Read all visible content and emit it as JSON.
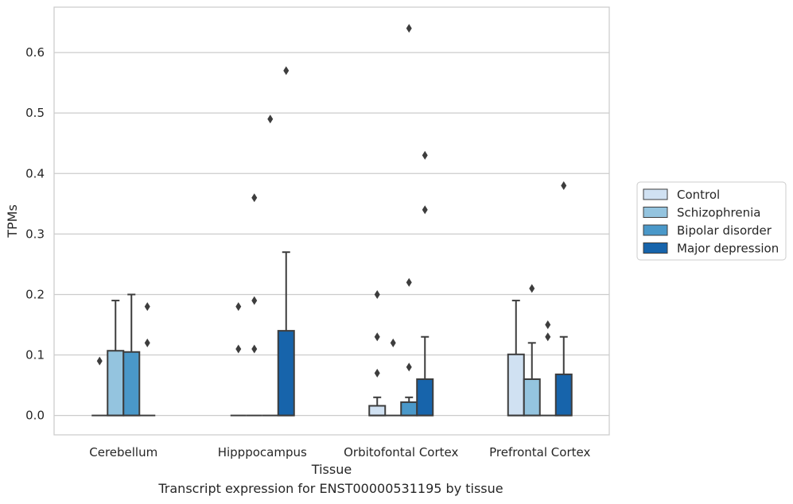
{
  "caption": "Transcript expression for ENST00000531195 by tissue",
  "chart_data": {
    "type": "box",
    "xlabel": "Tissue",
    "ylabel": "TPMs",
    "ylim": [
      -0.032,
      0.675
    ],
    "yticks": [
      0.0,
      0.1,
      0.2,
      0.3,
      0.4,
      0.5,
      0.6
    ],
    "ytick_labels": [
      "0.0",
      "0.1",
      "0.2",
      "0.3",
      "0.4",
      "0.5",
      "0.6"
    ],
    "grid": true,
    "legend_position": "right",
    "categories": [
      "Cerebellum",
      "Hipppocampus",
      "Orbitofontal Cortex",
      "Prefrontal Cortex"
    ],
    "series": [
      {
        "name": "Control",
        "color": "#d0e1f2",
        "boxes": [
          {
            "q1": 0,
            "median": 0,
            "q3": 0,
            "whisker_low": 0,
            "whisker_high": 0,
            "outliers": [
              0.09
            ]
          },
          {
            "q1": 0,
            "median": 0,
            "q3": 0,
            "whisker_low": 0,
            "whisker_high": 0,
            "outliers": [
              0.18,
              0.11
            ]
          },
          {
            "q1": 0,
            "median": 0,
            "q3": 0.016,
            "whisker_low": 0,
            "whisker_high": 0.03,
            "outliers": [
              0.2,
              0.13,
              0.07
            ]
          },
          {
            "q1": 0,
            "median": 0,
            "q3": 0.101,
            "whisker_low": 0,
            "whisker_high": 0.19,
            "outliers": []
          }
        ]
      },
      {
        "name": "Schizophrenia",
        "color": "#94c4df",
        "boxes": [
          {
            "q1": 0,
            "median": 0,
            "q3": 0.107,
            "whisker_low": 0,
            "whisker_high": 0.19,
            "outliers": []
          },
          {
            "q1": 0,
            "median": 0,
            "q3": 0,
            "whisker_low": 0,
            "whisker_high": 0,
            "outliers": [
              0.36,
              0.19,
              0.11
            ]
          },
          {
            "q1": 0,
            "median": 0,
            "q3": 0,
            "whisker_low": 0,
            "whisker_high": 0,
            "outliers": [
              0.12
            ]
          },
          {
            "q1": 0,
            "median": 0,
            "q3": 0.06,
            "whisker_low": 0,
            "whisker_high": 0.12,
            "outliers": [
              0.21
            ]
          }
        ]
      },
      {
        "name": "Bipolar disorder",
        "color": "#4a98c9",
        "boxes": [
          {
            "q1": 0,
            "median": 0,
            "q3": 0.105,
            "whisker_low": 0,
            "whisker_high": 0.2,
            "outliers": []
          },
          {
            "q1": 0,
            "median": 0,
            "q3": 0,
            "whisker_low": 0,
            "whisker_high": 0,
            "outliers": [
              0.49
            ]
          },
          {
            "q1": 0,
            "median": 0,
            "q3": 0.022,
            "whisker_low": 0,
            "whisker_high": 0.03,
            "outliers": [
              0.64,
              0.22,
              0.08
            ]
          },
          {
            "q1": 0,
            "median": 0,
            "q3": 0,
            "whisker_low": 0,
            "whisker_high": 0,
            "outliers": [
              0.15,
              0.13
            ]
          }
        ]
      },
      {
        "name": "Major depression",
        "color": "#1764ab",
        "boxes": [
          {
            "q1": 0,
            "median": 0,
            "q3": 0,
            "whisker_low": 0,
            "whisker_high": 0,
            "outliers": [
              0.18,
              0.12
            ]
          },
          {
            "q1": 0,
            "median": 0,
            "q3": 0.14,
            "whisker_low": 0,
            "whisker_high": 0.27,
            "outliers": [
              0.57
            ]
          },
          {
            "q1": 0,
            "median": 0,
            "q3": 0.06,
            "whisker_low": 0,
            "whisker_high": 0.13,
            "outliers": [
              0.43,
              0.34
            ]
          },
          {
            "q1": 0,
            "median": 0,
            "q3": 0.068,
            "whisker_low": 0,
            "whisker_high": 0.13,
            "outliers": [
              0.38
            ]
          }
        ]
      }
    ]
  }
}
